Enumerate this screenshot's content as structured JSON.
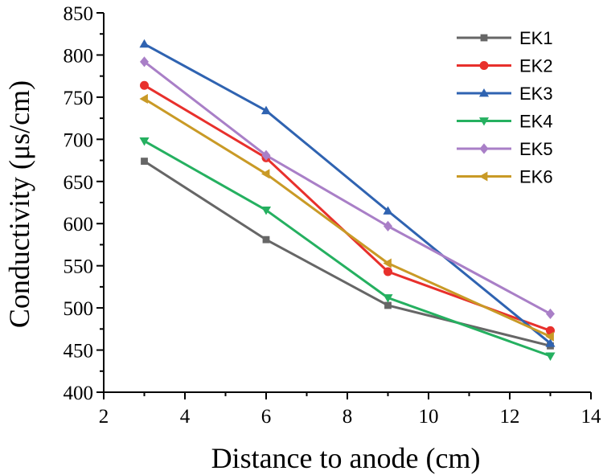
{
  "chart_data": {
    "type": "line",
    "title": "",
    "xlabel": "Distance to anode (cm)",
    "ylabel": "Conductivity (μs/cm)",
    "xlim": [
      2,
      14
    ],
    "ylim": [
      400,
      850
    ],
    "xticks": [
      2,
      4,
      6,
      8,
      10,
      12,
      14
    ],
    "yticks": [
      400,
      450,
      500,
      550,
      600,
      650,
      700,
      750,
      800,
      850
    ],
    "x": [
      3,
      6,
      9,
      13
    ],
    "legend_position": "top-right",
    "grid": false,
    "series": [
      {
        "name": "EK1",
        "values": [
          674,
          581,
          503,
          455
        ],
        "color": "#666666",
        "marker": "square"
      },
      {
        "name": "EK2",
        "values": [
          764,
          678,
          543,
          473
        ],
        "color": "#e8302c",
        "marker": "circle"
      },
      {
        "name": "EK3",
        "values": [
          813,
          734,
          615,
          458
        ],
        "color": "#2f63b1",
        "marker": "triangle-up"
      },
      {
        "name": "EK4",
        "values": [
          698,
          616,
          512,
          443
        ],
        "color": "#25b060",
        "marker": "triangle-down"
      },
      {
        "name": "EK5",
        "values": [
          792,
          681,
          597,
          493
        ],
        "color": "#a97fc7",
        "marker": "diamond"
      },
      {
        "name": "EK6",
        "values": [
          748,
          659,
          553,
          466
        ],
        "color": "#c99a26",
        "marker": "triangle-left"
      }
    ]
  }
}
